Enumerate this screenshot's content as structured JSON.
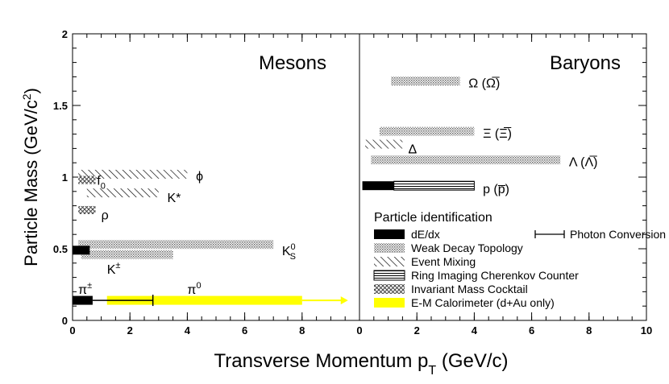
{
  "chart_data": {
    "type": "bar",
    "orientation": "horizontal-ranges",
    "xlabel": "Transverse Momentum p_T (GeV/c)",
    "ylabel": "Particle Mass (GeV/c^2)",
    "ylim": [
      0,
      2
    ],
    "yticks": [
      "0",
      "0.5",
      "1",
      "1.5",
      "2"
    ],
    "panels": [
      {
        "name": "mesons",
        "title": "Mesons",
        "xlim": [
          0,
          10
        ],
        "xticks": [
          "0",
          "2",
          "4",
          "6",
          "8"
        ],
        "bars": [
          {
            "particle": "pi-charged",
            "mass": 0.14,
            "x0": 0.0,
            "x1": 0.7,
            "method": "dEdx"
          },
          {
            "particle": "pi-charged",
            "mass": 0.14,
            "x0": 0.7,
            "x1": 2.8,
            "method": "conversion"
          },
          {
            "particle": "pi0",
            "mass": 0.14,
            "x0": 1.2,
            "x1": 8.0,
            "method": "emcal"
          },
          {
            "particle": "K-charged",
            "mass": 0.49,
            "x0": 0.0,
            "x1": 0.6,
            "method": "dEdx"
          },
          {
            "particle": "K-charged",
            "mass": 0.46,
            "x0": 0.3,
            "x1": 3.5,
            "method": "weak"
          },
          {
            "particle": "K0S",
            "mass": 0.53,
            "x0": 0.2,
            "x1": 7.0,
            "method": "weak"
          },
          {
            "particle": "rho",
            "mass": 0.77,
            "x0": 0.2,
            "x1": 0.8,
            "method": "cocktail"
          },
          {
            "particle": "f0",
            "mass": 0.98,
            "x0": 0.2,
            "x1": 0.8,
            "method": "cocktail"
          },
          {
            "particle": "K*",
            "mass": 0.89,
            "x0": 0.5,
            "x1": 3.0,
            "method": "mixing"
          },
          {
            "particle": "phi",
            "mass": 1.02,
            "x0": 0.2,
            "x1": 4.0,
            "method": "mixing"
          }
        ],
        "arrow": {
          "x0": 8.0,
          "x1": 9.6,
          "mass": 0.14,
          "method": "emcal"
        },
        "labels": [
          {
            "text": "π",
            "sup": "±",
            "x": 0.2,
            "mass": 0.22
          },
          {
            "text": "π",
            "sup": "0",
            "x": 4.0,
            "mass": 0.22
          },
          {
            "text": "K",
            "sup": "±",
            "x": 1.2,
            "mass": 0.36
          },
          {
            "text": "K",
            "sup": "0",
            "sub": "S",
            "x": 7.3,
            "mass": 0.49
          },
          {
            "text": "ρ",
            "x": 1.0,
            "mass": 0.74
          },
          {
            "text": "f",
            "sub": "0",
            "x": 0.85,
            "mass": 0.98
          },
          {
            "text": "K*",
            "x": 3.3,
            "mass": 0.86
          },
          {
            "text": "ϕ",
            "x": 4.3,
            "mass": 1.01
          }
        ]
      },
      {
        "name": "baryons",
        "title": "Baryons",
        "xlim": [
          0,
          10
        ],
        "xticks": [
          "0",
          "2",
          "4",
          "6",
          "8",
          "10"
        ],
        "bars": [
          {
            "particle": "p",
            "mass": 0.94,
            "x0": 0.1,
            "x1": 1.2,
            "method": "dEdx"
          },
          {
            "particle": "p",
            "mass": 0.94,
            "x0": 1.2,
            "x1": 4.0,
            "method": "rich"
          },
          {
            "particle": "Lambda",
            "mass": 1.12,
            "x0": 0.4,
            "x1": 7.0,
            "method": "weak"
          },
          {
            "particle": "Delta",
            "mass": 1.23,
            "x0": 0.2,
            "x1": 1.5,
            "method": "mixing"
          },
          {
            "particle": "Xi",
            "mass": 1.32,
            "x0": 0.7,
            "x1": 4.0,
            "method": "weak"
          },
          {
            "particle": "Omega",
            "mass": 1.67,
            "x0": 1.1,
            "x1": 3.5,
            "method": "weak"
          }
        ],
        "labels": [
          {
            "text": "Ω (Ω̅)",
            "x": 3.8,
            "mass": 1.66
          },
          {
            "text": "Ξ (Ξ̅)",
            "x": 4.3,
            "mass": 1.31
          },
          {
            "text": "Δ",
            "x": 1.7,
            "mass": 1.2
          },
          {
            "text": "Λ (Λ̅)",
            "x": 7.3,
            "mass": 1.11
          },
          {
            "text": "p (p̅)",
            "x": 4.3,
            "mass": 0.92
          }
        ]
      }
    ],
    "methods": {
      "dEdx": "solid-black",
      "weak": "stippled-gray",
      "mixing": "diagonal-hatch",
      "rich": "horizontal-lines",
      "cocktail": "cross-hatch",
      "emcal": "solid-yellow",
      "conversion": "error-bar"
    },
    "legend": {
      "title": "Particle identification",
      "placement": "lower-right",
      "items": [
        {
          "method": "dEdx",
          "label": "dE/dx"
        },
        {
          "method": "conversion",
          "label": "Photon Conversion"
        },
        {
          "method": "weak",
          "label": "Weak Decay Topology"
        },
        {
          "method": "mixing",
          "label": "Event Mixing"
        },
        {
          "method": "rich",
          "label": "Ring Imaging Cherenkov Counter"
        },
        {
          "method": "cocktail",
          "label": "Invariant Mass Cocktail"
        },
        {
          "method": "emcal",
          "label": "E-M Calorimeter (d+Au only)"
        }
      ]
    },
    "colors": {
      "emcal": "#ffff00",
      "black": "#000000",
      "gray": "#7a7a7a"
    }
  }
}
